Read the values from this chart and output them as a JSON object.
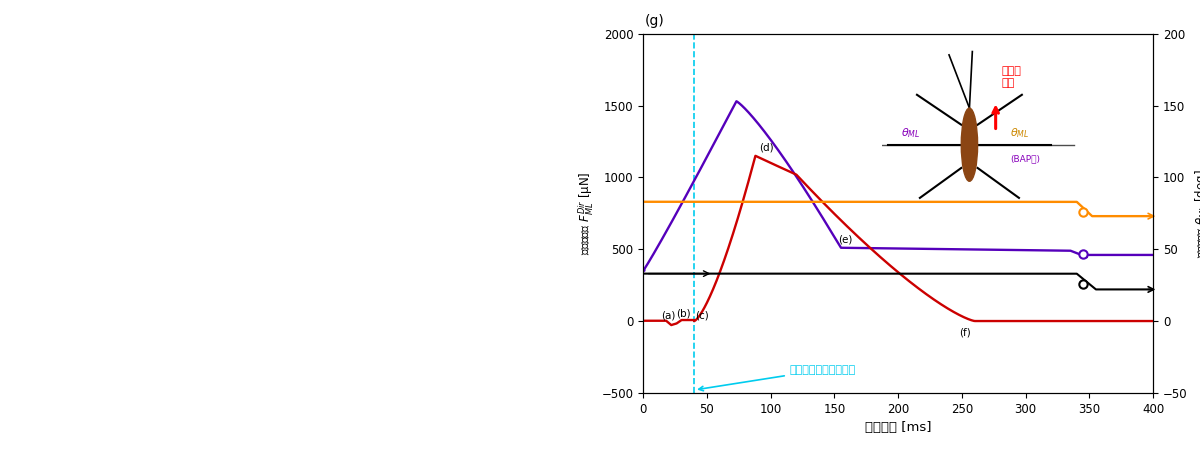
{
  "title_label": "(g)",
  "xlabel": "測定時間 [ms]",
  "ylabel_left": "中脚の脚力 $F_{ML}^{Dir}$ [μN]",
  "ylabel_right": "中脚の角度 $\\theta_{ML}$ [deg]",
  "xlim": [
    0,
    400
  ],
  "ylim_left": [
    -500,
    2000
  ],
  "ylim_right": [
    -50,
    200
  ],
  "xticks": [
    0,
    50,
    100,
    150,
    200,
    250,
    300,
    350,
    400
  ],
  "yticks_left": [
    -500,
    0,
    500,
    1000,
    1500,
    2000
  ],
  "yticks_right": [
    -50,
    0,
    50,
    100,
    150,
    200
  ],
  "red_color": "#CC0000",
  "purple_color": "#5500BB",
  "orange_color": "#FF8C00",
  "black_color": "#000000",
  "cyan_color": "#00CCEE",
  "annotation_text": "仲脚がプローブに接触",
  "contact_x": 40,
  "legend_force_text": "中脚の\n脚力",
  "theta_ml_label": "θ_ML",
  "theta_bap_label": "θ_ML\n(BAP側)",
  "fig_label_a": "(a)",
  "fig_label_b": "(b)",
  "fig_label_c": "(c)",
  "fig_label_d": "(d)",
  "fig_label_e": "(e)",
  "fig_label_f": "(f)",
  "body_color": "#8B4513"
}
